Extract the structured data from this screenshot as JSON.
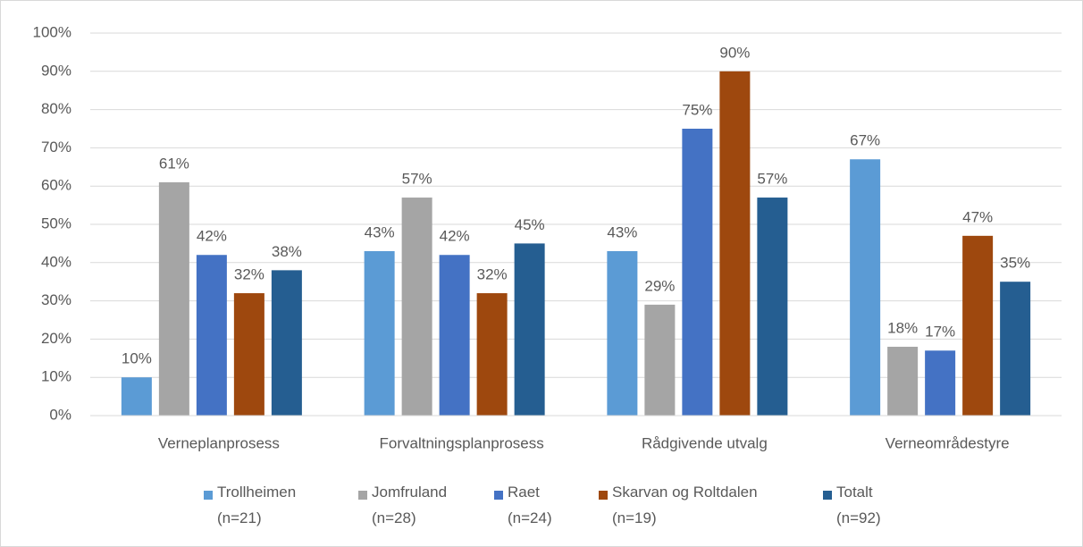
{
  "chart_data": {
    "type": "bar",
    "categories": [
      "Verneplanprosess",
      "Forvaltningsplanprosess",
      "Rådgivende utvalg",
      "Verneområdestyre"
    ],
    "series": [
      {
        "name": "Trollheimen\n(n=21)",
        "color": "#5b9bd5",
        "values": [
          10,
          43,
          43,
          67
        ],
        "value_labels": [
          "10%",
          "43%",
          "43%",
          "67%"
        ]
      },
      {
        "name": "Jomfruland\n(n=28)",
        "color": "#a5a5a5",
        "values": [
          61,
          57,
          29,
          18
        ],
        "value_labels": [
          "61%",
          "57%",
          "29%",
          "18%"
        ]
      },
      {
        "name": "Raet\n(n=24)",
        "color": "#4472c4",
        "values": [
          42,
          42,
          75,
          17
        ],
        "value_labels": [
          "42%",
          "42%",
          "75%",
          "17%"
        ]
      },
      {
        "name": "Skarvan og Roltdalen\n(n=19)",
        "color": "#9e480e",
        "values": [
          32,
          32,
          90,
          47
        ],
        "value_labels": [
          "32%",
          "32%",
          "90%",
          "47%"
        ]
      },
      {
        "name": "Totalt\n(n=92)",
        "color": "#255e91",
        "values": [
          38,
          45,
          57,
          35
        ],
        "value_labels": [
          "38%",
          "45%",
          "57%",
          "35%"
        ]
      }
    ],
    "ylim": [
      0,
      100
    ],
    "yticks": [
      {
        "value": 0,
        "label": "0%"
      },
      {
        "value": 10,
        "label": "10%"
      },
      {
        "value": 20,
        "label": "20%"
      },
      {
        "value": 30,
        "label": "30%"
      },
      {
        "value": 40,
        "label": "40%"
      },
      {
        "value": 50,
        "label": "50%"
      },
      {
        "value": 60,
        "label": "60%"
      },
      {
        "value": 70,
        "label": "70%"
      },
      {
        "value": 80,
        "label": "80%"
      },
      {
        "value": 90,
        "label": "90%"
      },
      {
        "value": 100,
        "label": "100%"
      }
    ],
    "grid": true,
    "legend": "bottom"
  }
}
